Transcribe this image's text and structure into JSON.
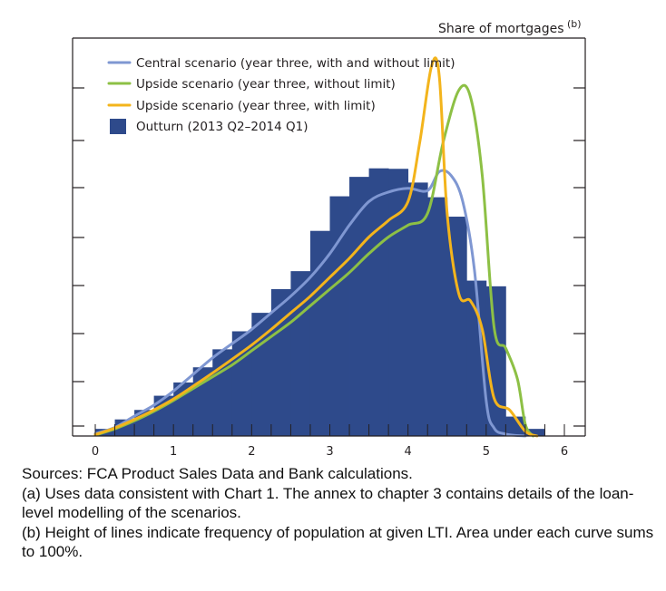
{
  "chart_data": {
    "type": "bar",
    "unit_label": "Share of mortgages",
    "unit_footnote": "(b)",
    "xlim": [
      0,
      6
    ],
    "x_ticks": [
      0,
      1,
      2,
      3,
      4,
      5,
      6
    ],
    "bin_width": 0.25,
    "grid": false,
    "legend_placement": "top-left",
    "outturn": {
      "name": "Outturn (2013 Q2–2014 Q1)",
      "color": "#2e4a8b",
      "bin_starts": [
        0,
        0.25,
        0.5,
        0.75,
        1,
        1.25,
        1.5,
        1.75,
        2,
        2.25,
        2.5,
        2.75,
        3,
        3.25,
        3.5,
        3.75,
        4,
        4.25,
        4.5,
        4.75,
        5,
        5.25,
        5.5,
        5.75
      ],
      "values": [
        1.5,
        3.5,
        5.5,
        8.5,
        11.3,
        14.5,
        18.3,
        22.1,
        26,
        31,
        34.8,
        43.3,
        50.6,
        54.7,
        56.5,
        56.4,
        53.5,
        50.4,
        46.3,
        32.8,
        31.6,
        4.1,
        1.5,
        0
      ]
    },
    "series": [
      {
        "name": "Central scenario (year three, with and without limit)",
        "color": "#7f97d2",
        "x": [
          0,
          0.25,
          0.5,
          0.75,
          1,
          1.25,
          1.5,
          1.75,
          2,
          2.25,
          2.5,
          2.75,
          3,
          3.25,
          3.5,
          3.75,
          4,
          4.25,
          4.4,
          4.55,
          4.7,
          4.85,
          5,
          5.1,
          5.25,
          5.5
        ],
        "y": [
          0.5,
          1.8,
          4.2,
          6.5,
          9.5,
          13,
          16.5,
          19.5,
          22.5,
          26,
          29.5,
          33.5,
          38.5,
          44.5,
          49.5,
          51.5,
          52.3,
          51.8,
          55.8,
          55,
          49.5,
          35,
          7.5,
          1.7,
          0.4,
          0
        ]
      },
      {
        "name": "Upside scenario (year three, without limit)",
        "color": "#8dc045",
        "x": [
          0,
          0.25,
          0.5,
          0.75,
          1,
          1.25,
          1.5,
          1.75,
          2,
          2.25,
          2.5,
          2.75,
          3,
          3.25,
          3.5,
          3.75,
          4,
          4.25,
          4.45,
          4.65,
          4.8,
          4.95,
          5.1,
          5.25,
          5.4,
          5.5,
          5.6
        ],
        "y": [
          0.2,
          1.5,
          3.2,
          5.2,
          7.5,
          10,
          12.5,
          15,
          18,
          21,
          24,
          27.5,
          31,
          34.5,
          38.5,
          42,
          44.5,
          47,
          62,
          73,
          71.5,
          55,
          23,
          18.5,
          12,
          2.5,
          0
        ]
      },
      {
        "name": "Upside scenario (year three, with limit)",
        "color": "#f3b41c",
        "x": [
          0,
          0.25,
          0.5,
          0.75,
          1,
          1.25,
          1.5,
          1.75,
          2,
          2.25,
          2.5,
          2.75,
          3,
          3.25,
          3.5,
          3.75,
          4,
          4.15,
          4.3,
          4.4,
          4.5,
          4.65,
          4.8,
          4.95,
          5.1,
          5.3,
          5.5,
          5.65
        ],
        "y": [
          0.3,
          1.7,
          3.5,
          5.5,
          7.8,
          10.5,
          13.3,
          16.2,
          19.2,
          22.5,
          26,
          29.5,
          33.5,
          37.5,
          42,
          45.5,
          49.5,
          62,
          78,
          76,
          47,
          30,
          28.5,
          22.5,
          8,
          5.5,
          1,
          0
        ]
      }
    ]
  },
  "notes": {
    "sources": "Sources: FCA Product Sales Data and Bank calculations.",
    "note_a": "(a) Uses data consistent with Chart 1. The annex to chapter 3 contains details of the loan-level modelling of the scenarios.",
    "note_b": "(b) Height of lines indicate frequency of population at given LTI. Area under each curve sums to 100%."
  }
}
